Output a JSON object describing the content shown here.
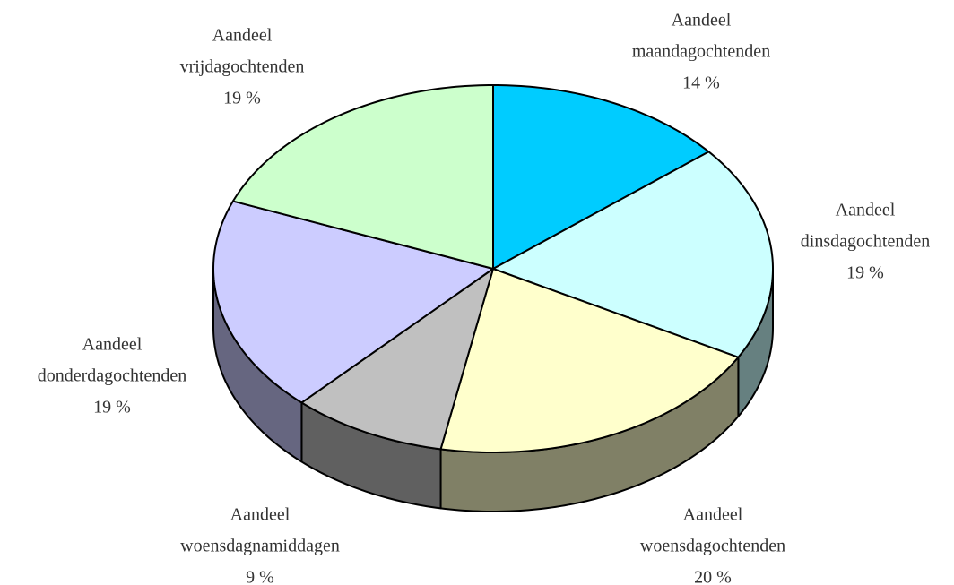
{
  "chart_data": {
    "type": "pie",
    "categories": [
      "Aandeel maandagochtenden",
      "Aandeel dinsdagochtenden",
      "Aandeel woensdagochtenden",
      "Aandeel woensdagnamiddagen",
      "Aandeel donderdagochtenden",
      "Aandeel vrijdagochtenden"
    ],
    "values": [
      14,
      19,
      20,
      9,
      19,
      19
    ],
    "value_labels": [
      "14 %",
      "19 %",
      "20 %",
      "9 %",
      "19 %",
      "19 %"
    ],
    "colors": [
      "#00ccff",
      "#ccffff",
      "#ffffcc",
      "#c0c0c0",
      "#ccccff",
      "#ccffcc"
    ],
    "side_colors": [
      "#006680",
      "#668080",
      "#808066",
      "#606060",
      "#666680",
      "#668066"
    ]
  }
}
